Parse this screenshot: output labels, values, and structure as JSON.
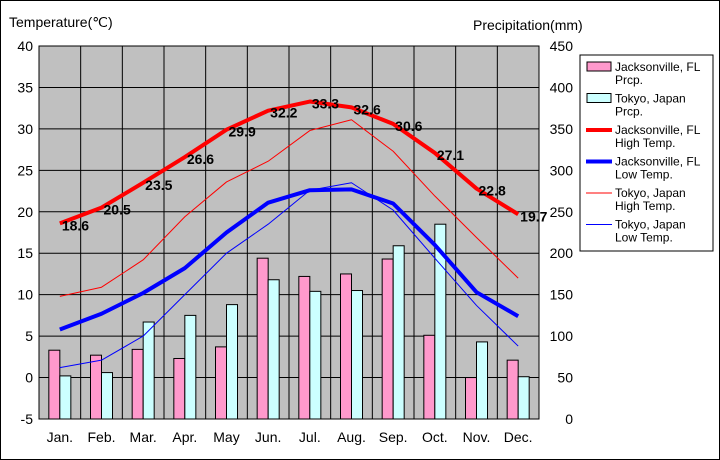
{
  "chart_data": {
    "type": "bar+line",
    "left_axis_title": "Temperature(℃)",
    "right_axis_title": "Precipitation(mm)",
    "categories": [
      "Jan.",
      "Feb.",
      "Mar.",
      "Apr.",
      "May",
      "Jun.",
      "Jul.",
      "Aug.",
      "Sep.",
      "Oct.",
      "Nov.",
      "Dec."
    ],
    "ylim_left": [
      -5,
      40
    ],
    "yticks_left": [
      -5,
      0,
      5,
      10,
      15,
      20,
      25,
      30,
      35,
      40
    ],
    "ylim_right": [
      0,
      450
    ],
    "yticks_right": [
      0,
      50,
      100,
      150,
      200,
      250,
      300,
      350,
      400,
      450
    ],
    "grid": true,
    "legend_position": "right",
    "plot_background": "#c0c0c0",
    "bar_series": [
      {
        "name": "Jacksonville, FL Prcp.",
        "color": "#ff99cc",
        "values": [
          83,
          77,
          84,
          73,
          87,
          194,
          172,
          175,
          193,
          101,
          50,
          71
        ]
      },
      {
        "name": "Tokyo, Japan Prcp.",
        "color": "#ccffff",
        "values": [
          52,
          56,
          117,
          125,
          138,
          168,
          154,
          155,
          209,
          235,
          93,
          51
        ]
      }
    ],
    "line_series": [
      {
        "name": "Jacksonville, FL High Temp.",
        "color": "#ff0000",
        "width": 4,
        "values": [
          18.6,
          20.5,
          23.5,
          26.6,
          29.9,
          32.2,
          33.3,
          32.6,
          30.6,
          27.1,
          22.8,
          19.7
        ],
        "labels": [
          "18.6",
          "20.5",
          "23.5",
          "26.6",
          "29.9",
          "32.2",
          "33.3",
          "32.6",
          "30.6",
          "27.1",
          "22.8",
          "19.7"
        ]
      },
      {
        "name": "Jacksonville, FL Low Temp.",
        "color": "#0000ff",
        "width": 4,
        "values": [
          5.8,
          7.7,
          10.2,
          13.2,
          17.5,
          21.1,
          22.6,
          22.7,
          21.0,
          16.0,
          10.3,
          7.4
        ]
      },
      {
        "name": "Tokyo, Japan High Temp.",
        "color": "#ff0000",
        "width": 1,
        "values": [
          9.8,
          10.9,
          14.2,
          19.4,
          23.6,
          26.1,
          29.8,
          31.1,
          27.3,
          21.9,
          16.9,
          12.0
        ]
      },
      {
        "name": "Tokyo, Japan Low Temp.",
        "color": "#0000ff",
        "width": 1,
        "values": [
          1.2,
          2.1,
          5.0,
          10.0,
          15.0,
          18.5,
          22.6,
          23.5,
          20.2,
          14.4,
          8.7,
          3.8
        ]
      }
    ],
    "legend": [
      {
        "name": "Jacksonville, FL Prcp.",
        "line1": "Jacksonville, FL",
        "line2": "Prcp.",
        "kind": "bar",
        "color": "#ff99cc"
      },
      {
        "name": "Tokyo, Japan Prcp.",
        "line1": "Tokyo, Japan",
        "line2": "Prcp.",
        "kind": "bar",
        "color": "#ccffff"
      },
      {
        "name": "Jacksonville, FL High Temp.",
        "line1": "Jacksonville, FL",
        "line2": "High Temp.",
        "kind": "line",
        "color": "#ff0000",
        "width": 4
      },
      {
        "name": "Jacksonville, FL Low Temp.",
        "line1": "Jacksonville, FL",
        "line2": "Low Temp.",
        "kind": "line",
        "color": "#0000ff",
        "width": 4
      },
      {
        "name": "Tokyo, Japan High Temp.",
        "line1": "Tokyo, Japan",
        "line2": "High Temp.",
        "kind": "line",
        "color": "#ff0000",
        "width": 1
      },
      {
        "name": "Tokyo, Japan Low Temp.",
        "line1": "Tokyo, Japan",
        "line2": "Low Temp.",
        "kind": "line",
        "color": "#0000ff",
        "width": 1
      }
    ]
  }
}
